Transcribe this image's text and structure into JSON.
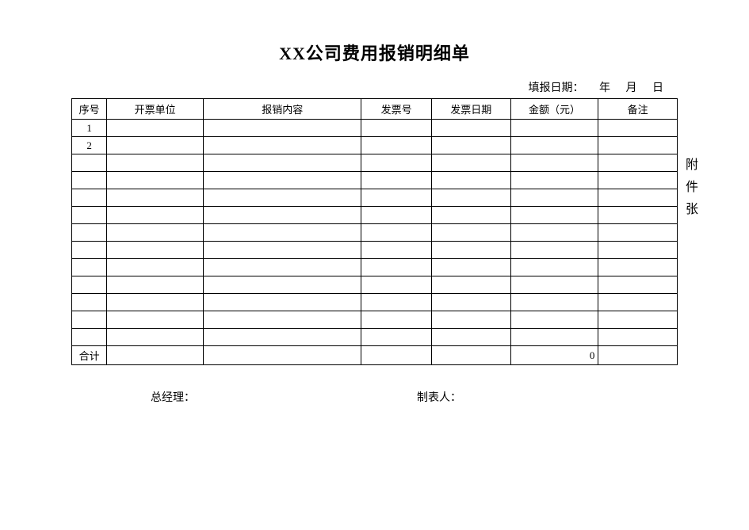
{
  "title": "XX公司费用报销明细单",
  "date_label": "填报日期：",
  "date_year": "年",
  "date_month": "月",
  "date_day": "日",
  "columns": {
    "seq": "序号",
    "unit": "开票单位",
    "content": "报销内容",
    "invoice_no": "发票号",
    "invoice_date": "发票日期",
    "amount": "金额（元）",
    "remark": "备注"
  },
  "rows": [
    {
      "seq": "1",
      "unit": "",
      "content": "",
      "invoice_no": "",
      "invoice_date": "",
      "amount": "",
      "remark": ""
    },
    {
      "seq": "2",
      "unit": "",
      "content": "",
      "invoice_no": "",
      "invoice_date": "",
      "amount": "",
      "remark": ""
    },
    {
      "seq": "",
      "unit": "",
      "content": "",
      "invoice_no": "",
      "invoice_date": "",
      "amount": "",
      "remark": ""
    },
    {
      "seq": "",
      "unit": "",
      "content": "",
      "invoice_no": "",
      "invoice_date": "",
      "amount": "",
      "remark": ""
    },
    {
      "seq": "",
      "unit": "",
      "content": "",
      "invoice_no": "",
      "invoice_date": "",
      "amount": "",
      "remark": ""
    },
    {
      "seq": "",
      "unit": "",
      "content": "",
      "invoice_no": "",
      "invoice_date": "",
      "amount": "",
      "remark": ""
    },
    {
      "seq": "",
      "unit": "",
      "content": "",
      "invoice_no": "",
      "invoice_date": "",
      "amount": "",
      "remark": ""
    },
    {
      "seq": "",
      "unit": "",
      "content": "",
      "invoice_no": "",
      "invoice_date": "",
      "amount": "",
      "remark": ""
    },
    {
      "seq": "",
      "unit": "",
      "content": "",
      "invoice_no": "",
      "invoice_date": "",
      "amount": "",
      "remark": ""
    },
    {
      "seq": "",
      "unit": "",
      "content": "",
      "invoice_no": "",
      "invoice_date": "",
      "amount": "",
      "remark": ""
    },
    {
      "seq": "",
      "unit": "",
      "content": "",
      "invoice_no": "",
      "invoice_date": "",
      "amount": "",
      "remark": ""
    },
    {
      "seq": "",
      "unit": "",
      "content": "",
      "invoice_no": "",
      "invoice_date": "",
      "amount": "",
      "remark": ""
    },
    {
      "seq": "",
      "unit": "",
      "content": "",
      "invoice_no": "",
      "invoice_date": "",
      "amount": "",
      "remark": ""
    }
  ],
  "total": {
    "label": "合计",
    "amount": "0"
  },
  "footer": {
    "manager": "总经理：",
    "preparer": "制表人："
  },
  "side": {
    "char1": "附",
    "char2": "件",
    "char3": "张"
  },
  "style": {
    "background_color": "#ffffff",
    "border_color": "#000000",
    "title_fontsize": 22,
    "body_fontsize": 13,
    "label_fontsize": 14,
    "col_widths": {
      "seq": 40,
      "unit": 110,
      "content": 180,
      "invoice_no": 80,
      "invoice_date": 90,
      "amount": 100,
      "remark": 90
    }
  }
}
